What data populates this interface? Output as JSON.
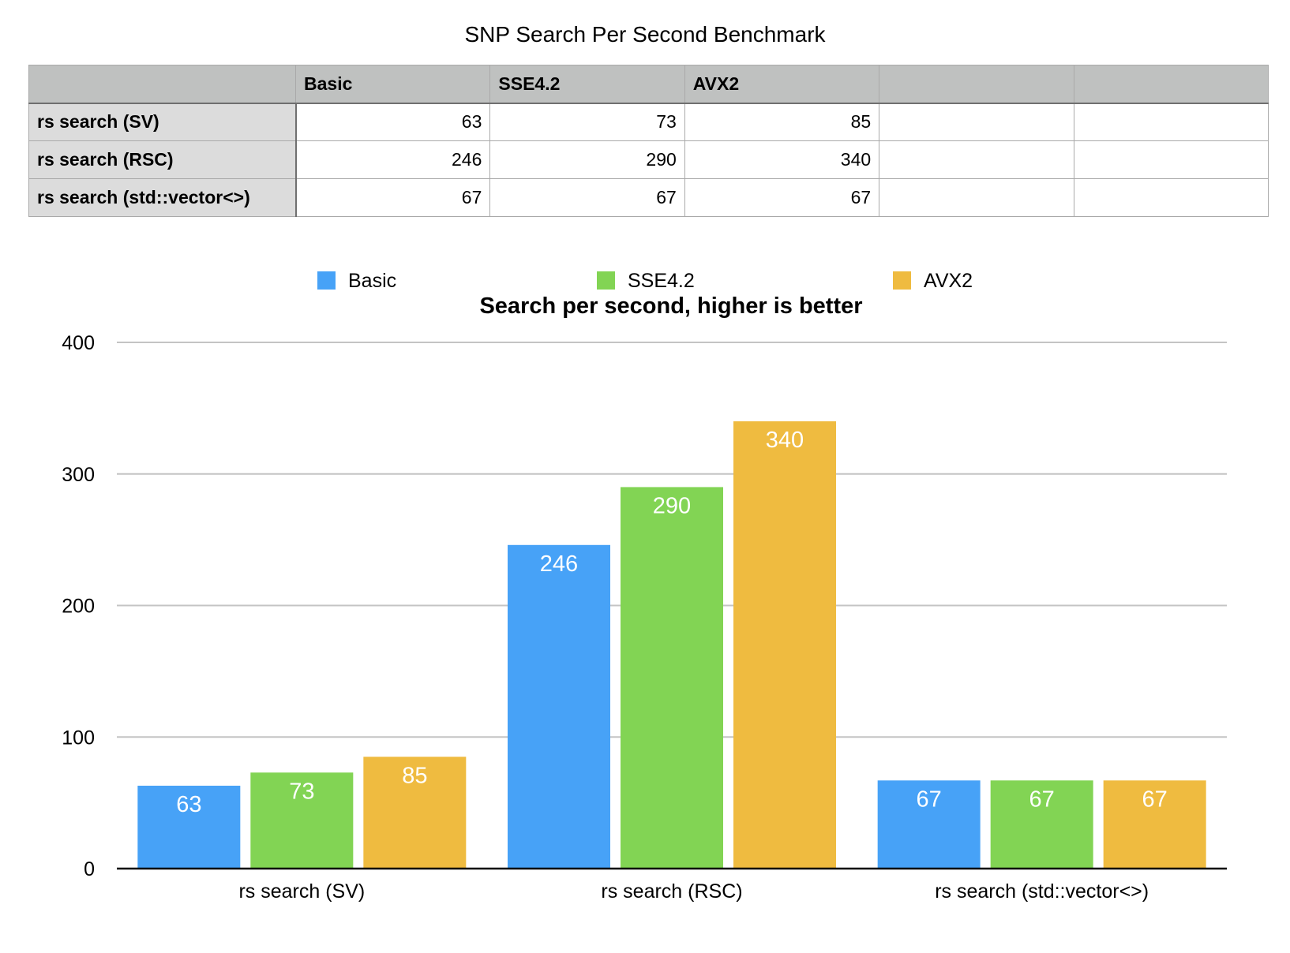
{
  "page_title": "SNP Search Per Second Benchmark",
  "table": {
    "columns": [
      "",
      "Basic",
      "SSE4.2",
      "AVX2",
      "",
      ""
    ],
    "rows": [
      {
        "label": "rs search (SV)",
        "cells": [
          "63",
          "73",
          "85",
          "",
          ""
        ]
      },
      {
        "label": "rs search (RSC)",
        "cells": [
          "246",
          "290",
          "340",
          "",
          ""
        ]
      },
      {
        "label": "rs search (std::vector<>)",
        "cells": [
          "67",
          "67",
          "67",
          "",
          ""
        ]
      }
    ]
  },
  "chart_data": {
    "type": "bar",
    "title": "Search per second, higher is better",
    "xlabel": "",
    "ylabel": "",
    "categories": [
      "rs search (SV)",
      "rs search (RSC)",
      "rs search (std::vector<>)"
    ],
    "series": [
      {
        "name": "Basic",
        "color": "#47a2f7",
        "values": [
          63,
          246,
          67
        ]
      },
      {
        "name": "SSE4.2",
        "color": "#82d454",
        "values": [
          73,
          290,
          67
        ]
      },
      {
        "name": "AVX2",
        "color": "#efbb40",
        "values": [
          85,
          340,
          67
        ]
      }
    ],
    "ylim": [
      0,
      400
    ],
    "yticks": [
      0,
      100,
      200,
      300,
      400
    ],
    "grid": true,
    "legend_position": "top",
    "data_labels": true
  }
}
